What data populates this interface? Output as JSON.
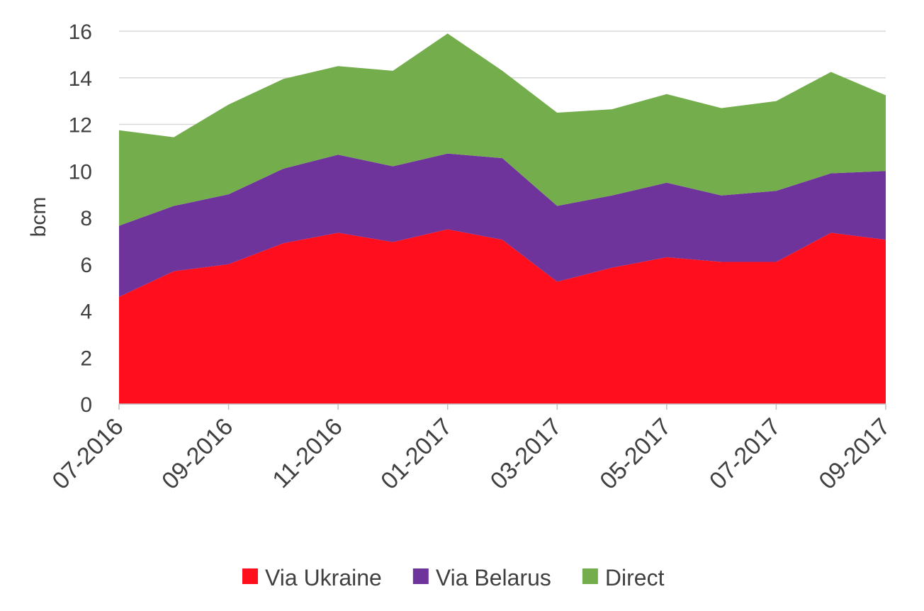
{
  "chart_data": {
    "type": "area",
    "stacked": true,
    "title": "",
    "xlabel": "",
    "ylabel": "bcm",
    "ylim": [
      0,
      16
    ],
    "yticks": [
      0,
      2,
      4,
      6,
      8,
      10,
      12,
      14,
      16
    ],
    "grid": "horizontal",
    "legend_position": "bottom",
    "x": [
      "07-2016",
      "08-2016",
      "09-2016",
      "10-2016",
      "11-2016",
      "12-2016",
      "01-2017",
      "02-2017",
      "03-2017",
      "04-2017",
      "05-2017",
      "06-2017",
      "07-2017",
      "08-2017",
      "09-2017"
    ],
    "x_tick_labels": [
      "07-2016",
      "09-2016",
      "11-2016",
      "01-2017",
      "03-2017",
      "05-2017",
      "07-2017",
      "09-2017"
    ],
    "series": [
      {
        "name": "Via Ukraine",
        "color": "#ff0f1e",
        "values": [
          4.6,
          5.7,
          6.0,
          6.9,
          7.35,
          6.95,
          7.5,
          7.05,
          5.25,
          5.85,
          6.3,
          6.1,
          6.1,
          7.35,
          7.05
        ]
      },
      {
        "name": "Via Belarus",
        "color": "#6e349c",
        "values": [
          3.05,
          2.8,
          3.0,
          3.2,
          3.35,
          3.25,
          3.25,
          3.5,
          3.25,
          3.1,
          3.2,
          2.85,
          3.05,
          2.55,
          2.95
        ]
      },
      {
        "name": "Direct",
        "color": "#74ad4c",
        "values": [
          4.1,
          2.95,
          3.85,
          3.85,
          3.8,
          4.1,
          5.15,
          3.75,
          4.0,
          3.7,
          3.8,
          3.75,
          3.85,
          4.35,
          3.25
        ]
      }
    ]
  }
}
